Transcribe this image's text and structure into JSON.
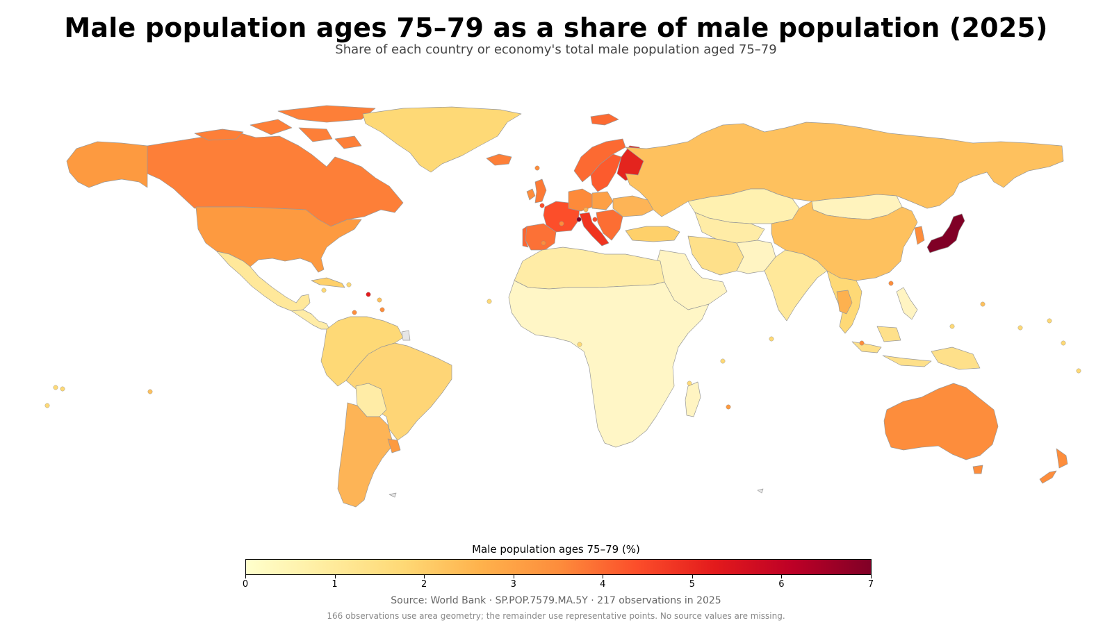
{
  "title": "Male population ages 75–79 as a share of male population (2025)",
  "subtitle": "Share of each country or economy's total male population aged 75–79",
  "colorbar": {
    "label": "Male population ages 75–79 (%)",
    "min": 0,
    "max": 7,
    "ticks": [
      "0",
      "1",
      "2",
      "3",
      "4",
      "5",
      "6",
      "7"
    ],
    "colormap": [
      "#ffffcc",
      "#ffeda0",
      "#fed976",
      "#feb24c",
      "#fd8d3c",
      "#fc4e2a",
      "#e31a1c",
      "#bd0026",
      "#800026"
    ]
  },
  "source": "Source: World Bank · SP.POP.7579.MA.5Y · 217 observations in 2025",
  "note": "166 observations use area geometry; the remainder use representative points. No source values are missing.",
  "colors": {
    "border": "#999999",
    "missing": "#e6e6e6",
    "ocean": "#ffffff"
  }
}
